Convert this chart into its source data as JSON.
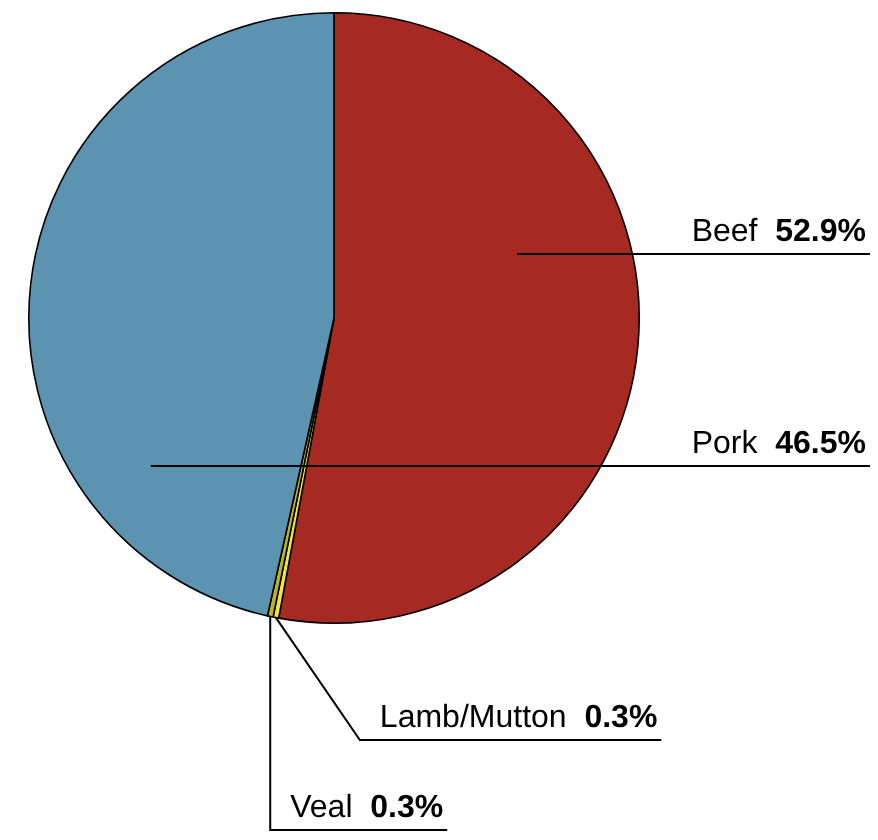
{
  "chart_data": {
    "type": "pie",
    "categories": [
      "Beef",
      "Lamb/Mutton",
      "Veal",
      "Pork"
    ],
    "values": [
      52.9,
      0.3,
      0.3,
      46.5
    ],
    "colors": [
      "#a62a22",
      "#f2e43a",
      "#b8b42a",
      "#5b93b1"
    ],
    "value_labels": [
      "52.9%",
      "0.3%",
      "0.3%",
      "46.5%"
    ]
  }
}
